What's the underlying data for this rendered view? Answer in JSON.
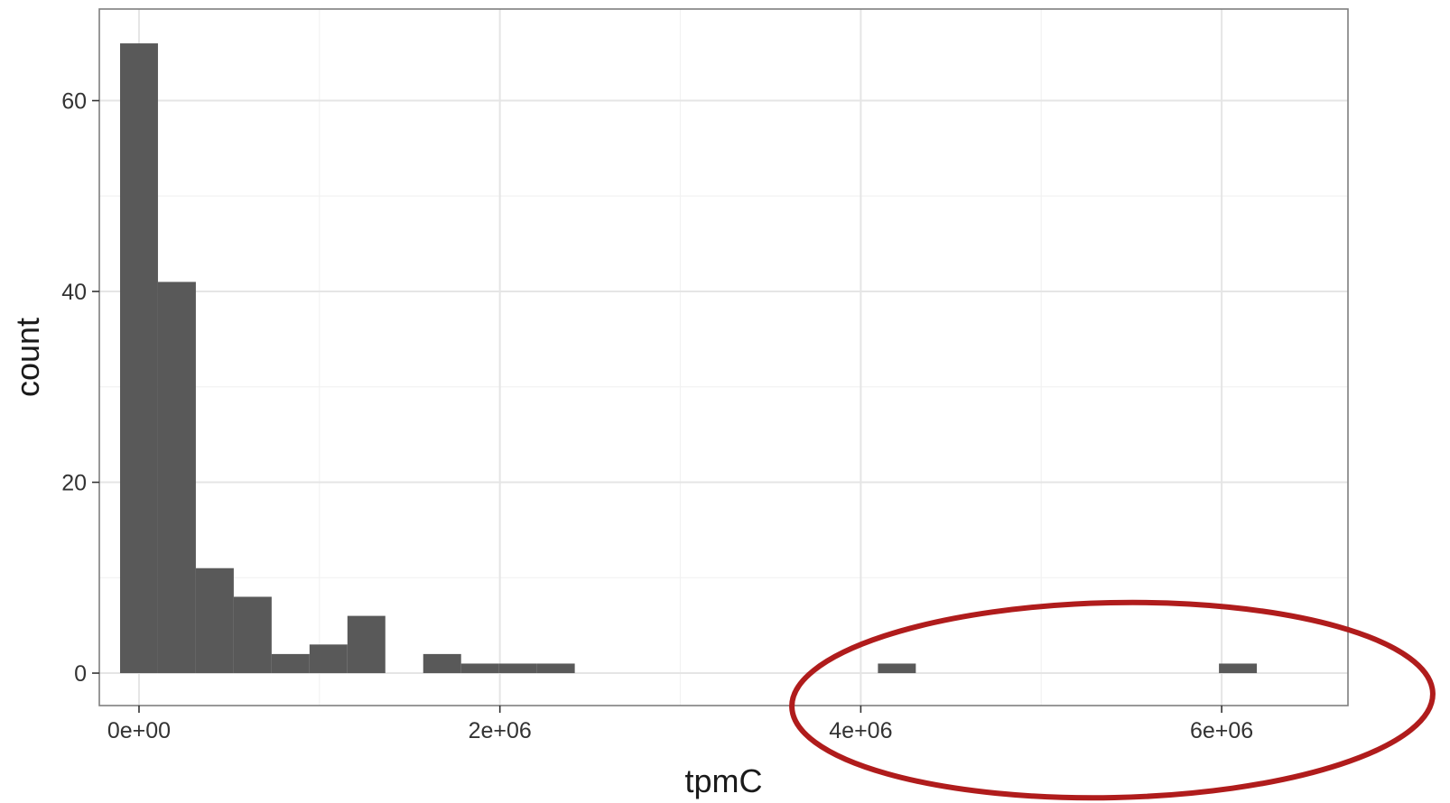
{
  "chart_data": {
    "type": "bar",
    "xlabel": "tpmC",
    "ylabel": "count",
    "xlim": [
      -220000,
      6700000
    ],
    "ylim": [
      -3.4,
      69.6
    ],
    "binwidth": 210000,
    "bins": [
      {
        "x0": -105000,
        "x1": 105000,
        "count": 66
      },
      {
        "x0": 105000,
        "x1": 315000,
        "count": 41
      },
      {
        "x0": 315000,
        "x1": 525000,
        "count": 11
      },
      {
        "x0": 525000,
        "x1": 735000,
        "count": 8
      },
      {
        "x0": 735000,
        "x1": 945000,
        "count": 2
      },
      {
        "x0": 945000,
        "x1": 1155000,
        "count": 3
      },
      {
        "x0": 1155000,
        "x1": 1365000,
        "count": 6
      },
      {
        "x0": 1575000,
        "x1": 1785000,
        "count": 2
      },
      {
        "x0": 1785000,
        "x1": 1995000,
        "count": 1
      },
      {
        "x0": 1995000,
        "x1": 2205000,
        "count": 1
      },
      {
        "x0": 2205000,
        "x1": 2415000,
        "count": 1
      },
      {
        "x0": 4095000,
        "x1": 4305000,
        "count": 1
      },
      {
        "x0": 5985000,
        "x1": 6195000,
        "count": 1
      }
    ],
    "x_ticks": [
      {
        "value": 0,
        "label": "0e+00"
      },
      {
        "value": 2000000,
        "label": "2e+06"
      },
      {
        "value": 4000000,
        "label": "4e+06"
      },
      {
        "value": 6000000,
        "label": "6e+06"
      }
    ],
    "y_ticks": [
      {
        "value": 0,
        "label": "0"
      },
      {
        "value": 20,
        "label": "20"
      },
      {
        "value": 40,
        "label": "40"
      },
      {
        "value": 60,
        "label": "60"
      }
    ],
    "x_minor": [
      1000000,
      3000000,
      5000000
    ],
    "y_minor": [
      10,
      30,
      50
    ],
    "grid": true,
    "colors": {
      "bar": "#595959",
      "panel_border": "#7f7f7f",
      "grid_major": "#e5e5e5",
      "grid_minor": "#f2f2f2",
      "highlight_ellipse": "#b01c1c"
    }
  }
}
